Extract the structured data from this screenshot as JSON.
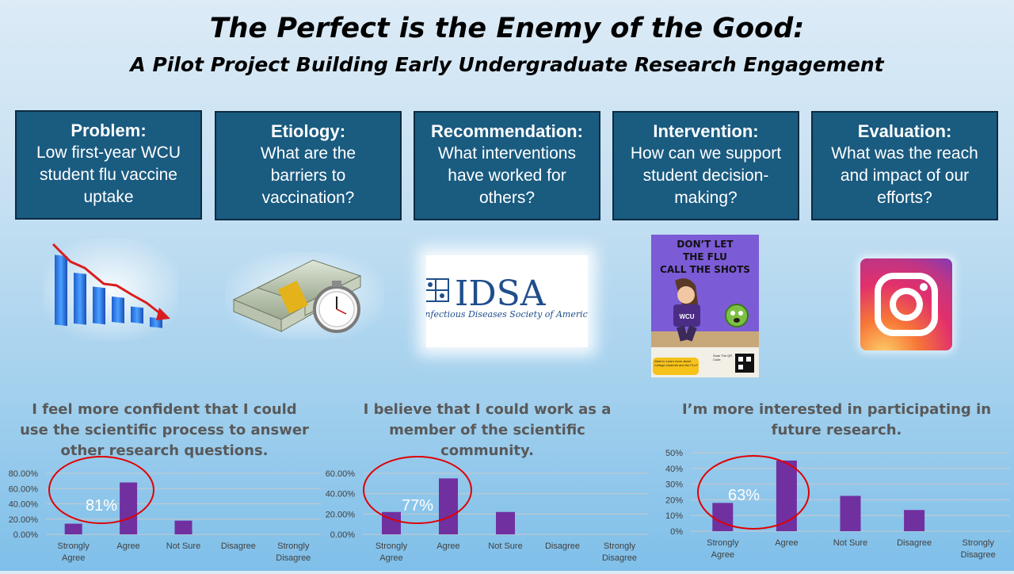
{
  "title": "The Perfect is the Enemy of the Good:",
  "subtitle": "A Pilot Project Building Early Undergraduate Research Engagement",
  "steps": [
    {
      "head": "Problem:",
      "body": "Low first-year WCU student flu vaccine uptake"
    },
    {
      "head": "Etiology:",
      "body": "What are the barriers to vaccination?"
    },
    {
      "head": "Recommendation:",
      "body": "What interventions have worked for others?"
    },
    {
      "head": "Intervention:",
      "body": "How can we support student decision-making?"
    },
    {
      "head": "Evaluation:",
      "body": "What was the reach and impact of our efforts?"
    }
  ],
  "images": {
    "problem": "declining-bar-chart-icon",
    "etiology": "money-and-stopwatch-icon",
    "recommendation": {
      "logo_text": "IDSA",
      "logo_caption": "Infectious Diseases Society of America"
    },
    "intervention": {
      "poster_title": "DON'T LET THE FLU CALL THE SHOTS",
      "shirt_text": "WCU",
      "footer_left": "Want to Learn more about College students and the FLU?",
      "footer_right": "Scan The QR Code"
    },
    "evaluation": "instagram-icon"
  },
  "colors": {
    "box_bg": "#1a5b80",
    "bar": "#7030a0",
    "circle": "#e00000",
    "question_text": "#595959"
  },
  "chart_data": [
    {
      "type": "bar",
      "title": "I feel more confident that I could use the scientific process to answer other research questions.",
      "categories": [
        "Strongly Agree",
        "Agree",
        "Not Sure",
        "Disagree",
        "Strongly Disagree"
      ],
      "values": [
        0.14,
        0.68,
        0.18,
        0,
        0
      ],
      "y_ticks": [
        "0.00%",
        "20.00%",
        "40.00%",
        "60.00%",
        "80.00%"
      ],
      "ylim": [
        0,
        0.8
      ],
      "grid": true,
      "annotation": "81%"
    },
    {
      "type": "bar",
      "title": "I believe that I could work as a member of the scientific community.",
      "categories": [
        "Strongly Agree",
        "Agree",
        "Not Sure",
        "Disagree",
        "Strongly Disagree"
      ],
      "values": [
        0.22,
        0.55,
        0.22,
        0,
        0
      ],
      "y_ticks": [
        "0.00%",
        "20.00%",
        "40.00%",
        "60.00%"
      ],
      "ylim": [
        0,
        0.6
      ],
      "grid": true,
      "annotation": "77%"
    },
    {
      "type": "bar",
      "title": "I’m more interested in participating in future research.",
      "categories": [
        "Strongly Agree",
        "Agree",
        "Not Sure",
        "Disagree",
        "Strongly Disagree"
      ],
      "values": [
        0.18,
        0.45,
        0.225,
        0.135,
        0
      ],
      "y_ticks": [
        "0%",
        "10%",
        "20%",
        "30%",
        "40%",
        "50%"
      ],
      "ylim": [
        0,
        0.5
      ],
      "grid": true,
      "annotation": "63%"
    }
  ]
}
